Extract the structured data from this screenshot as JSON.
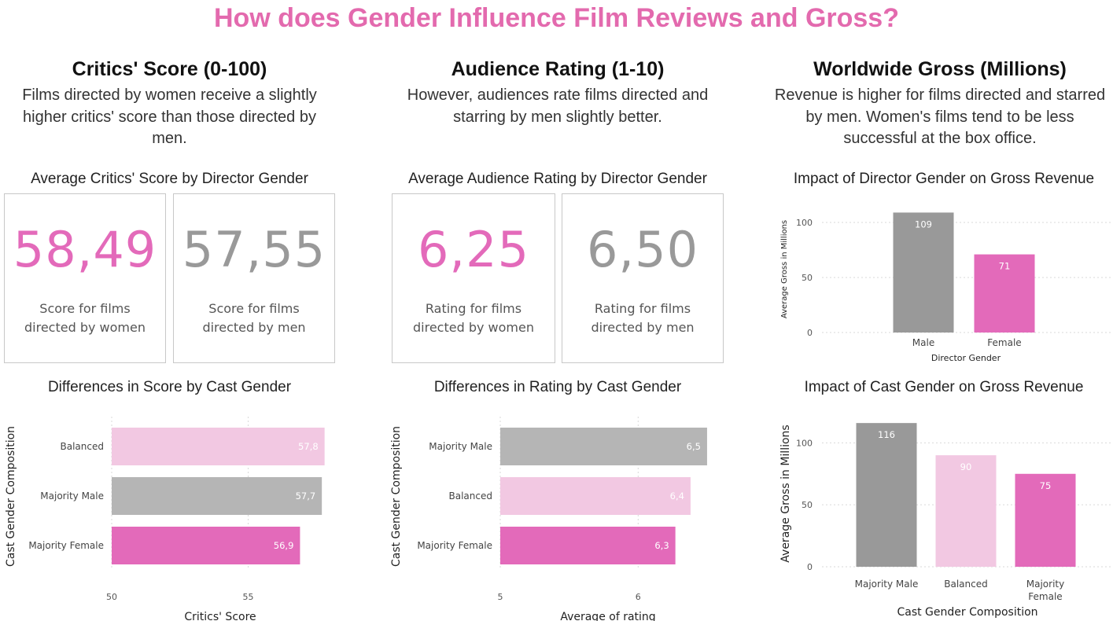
{
  "title": "How does Gender Influence Film Reviews and Gross?",
  "colors": {
    "pink": "#e36aba",
    "gray": "#999999",
    "light_gray": "#b5b5b5",
    "light_pink": "#f2c8e2",
    "title_pink": "#e36aae"
  },
  "columns": [
    {
      "heading": "Critics' Score (0-100)",
      "text_lines": [
        "Films directed by women receive a slightly",
        "higher critics' score than those directed by",
        "men."
      ],
      "cards_title": "Average Critics' Score by Director Gender",
      "cards": [
        {
          "value": "58,49",
          "line1": "Score for films",
          "line2": "directed by women",
          "color": "#e36aba"
        },
        {
          "value": "57,55",
          "line1": "Score for films",
          "line2": "directed by men",
          "color": "#999999"
        }
      ]
    },
    {
      "heading": "Audience Rating (1-10)",
      "text_lines": [
        "However, audiences rate films directed and",
        "starring by men slightly better."
      ],
      "cards_title": "Average Audience Rating by Director Gender",
      "cards": [
        {
          "value": "6,25",
          "line1": "Rating for films",
          "line2": "directed by women",
          "color": "#e36aba"
        },
        {
          "value": "6,50",
          "line1": "Rating for films",
          "line2": "directed by men",
          "color": "#999999"
        }
      ]
    },
    {
      "heading": "Worldwide Gross (Millions)",
      "text_lines": [
        "Revenue is higher for films directed and starred",
        "by men. Women's films tend to be less",
        "successful at the box office."
      ]
    }
  ],
  "chart_data": [
    {
      "id": "director-gross",
      "type": "bar",
      "title": "Impact of Director Gender on Gross Revenue",
      "xlabel": "Director Gender",
      "ylabel": "Average Gross in Millions",
      "categories": [
        "Male",
        "Female"
      ],
      "values": [
        109,
        71
      ],
      "value_labels": [
        "109",
        "71"
      ],
      "colors": [
        "#999999",
        "#e36aba"
      ],
      "yticks": [
        0,
        50,
        100
      ],
      "ytick_labels": [
        "0",
        "50",
        "100"
      ],
      "ylim": [
        0,
        115
      ],
      "grid": true
    },
    {
      "id": "cast-score",
      "type": "bar",
      "orientation": "horizontal",
      "title": "Differences in Score by Cast Gender",
      "xlabel": "Critics' Score",
      "ylabel": "Cast Gender Composition",
      "categories": [
        "Balanced",
        "Majority Male",
        "Majority Female"
      ],
      "values": [
        57.8,
        57.7,
        56.9
      ],
      "value_labels": [
        "57,8",
        "57,7",
        "56,9"
      ],
      "colors": [
        "#f2c8e2",
        "#b5b5b5",
        "#e36aba"
      ],
      "xticks": [
        50,
        55
      ],
      "xtick_labels": [
        "50",
        "55"
      ],
      "xlim": [
        50,
        58.3
      ],
      "grid": true
    },
    {
      "id": "cast-rating",
      "type": "bar",
      "orientation": "horizontal",
      "title": "Differences in Rating by Cast Gender",
      "xlabel": "Average of rating",
      "ylabel": "Cast Gender Composition",
      "categories": [
        "Majority Male",
        "Balanced",
        "Majority Female"
      ],
      "values": [
        6.5,
        6.38,
        6.27
      ],
      "value_labels": [
        "6,5",
        "6,4",
        "6,3"
      ],
      "colors": [
        "#b5b5b5",
        "#f2c8e2",
        "#e36aba"
      ],
      "xticks": [
        5,
        6
      ],
      "xtick_labels": [
        "5",
        "6"
      ],
      "xlim": [
        5,
        6.62
      ],
      "grid": true
    },
    {
      "id": "cast-gross",
      "type": "bar",
      "title": "Impact of Cast Gender on Gross Revenue",
      "xlabel": "Cast Gender Composition",
      "ylabel": "Average Gross in Millions",
      "categories": [
        "Majority Male",
        "Balanced",
        "Majority\nFemale"
      ],
      "values": [
        116,
        90,
        75
      ],
      "value_labels": [
        "116",
        "90",
        "75"
      ],
      "colors": [
        "#999999",
        "#f2c8e2",
        "#e36aba"
      ],
      "yticks": [
        0,
        50,
        100
      ],
      "ytick_labels": [
        "0",
        "50",
        "100"
      ],
      "ylim": [
        0,
        118
      ],
      "grid": true
    }
  ]
}
